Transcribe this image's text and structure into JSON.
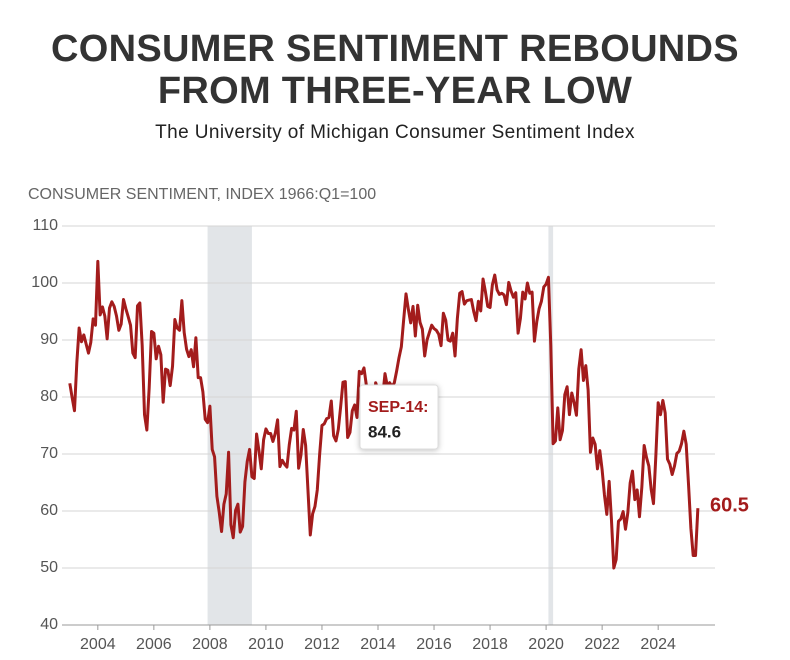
{
  "chart_data": {
    "type": "line",
    "title": "CONSUMER SENTIMENT REBOUNDS FROM THREE-YEAR LOW",
    "subtitle": "The University of Michigan Consumer Sentiment Index",
    "y_axis_label": "CONSUMER SENTIMENT, INDEX 1966:Q1=100",
    "annotation": "SEP-14:",
    "x": [
      2003,
      2003.083,
      2003.167,
      2003.25,
      2003.333,
      2003.417,
      2003.5,
      2003.583,
      2003.667,
      2003.75,
      2003.833,
      2003.917,
      2004,
      2004.083,
      2004.167,
      2004.25,
      2004.333,
      2004.417,
      2004.5,
      2004.583,
      2004.667,
      2004.75,
      2004.833,
      2004.917,
      2005,
      2005.083,
      2005.167,
      2005.25,
      2005.333,
      2005.417,
      2005.5,
      2005.583,
      2005.667,
      2005.75,
      2005.833,
      2005.917,
      2006,
      2006.083,
      2006.167,
      2006.25,
      2006.333,
      2006.417,
      2006.5,
      2006.583,
      2006.667,
      2006.75,
      2006.833,
      2006.917,
      2007,
      2007.083,
      2007.167,
      2007.25,
      2007.333,
      2007.417,
      2007.5,
      2007.583,
      2007.667,
      2007.75,
      2007.833,
      2007.917,
      2008,
      2008.083,
      2008.167,
      2008.25,
      2008.333,
      2008.417,
      2008.5,
      2008.583,
      2008.667,
      2008.75,
      2008.833,
      2008.917,
      2009,
      2009.083,
      2009.167,
      2009.25,
      2009.333,
      2009.417,
      2009.5,
      2009.583,
      2009.667,
      2009.75,
      2009.833,
      2009.917,
      2010,
      2010.083,
      2010.167,
      2010.25,
      2010.333,
      2010.417,
      2010.5,
      2010.583,
      2010.667,
      2010.75,
      2010.833,
      2010.917,
      2011,
      2011.083,
      2011.167,
      2011.25,
      2011.333,
      2011.417,
      2011.5,
      2011.583,
      2011.667,
      2011.75,
      2011.833,
      2011.917,
      2012,
      2012.083,
      2012.167,
      2012.25,
      2012.333,
      2012.417,
      2012.5,
      2012.583,
      2012.667,
      2012.75,
      2012.833,
      2012.917,
      2013,
      2013.083,
      2013.167,
      2013.25,
      2013.333,
      2013.417,
      2013.5,
      2013.583,
      2013.667,
      2013.75,
      2013.833,
      2013.917,
      2014,
      2014.083,
      2014.167,
      2014.25,
      2014.333,
      2014.417,
      2014.5,
      2014.583,
      2014.667,
      2014.75,
      2014.833,
      2014.917,
      2015,
      2015.083,
      2015.167,
      2015.25,
      2015.333,
      2015.417,
      2015.5,
      2015.583,
      2015.667,
      2015.75,
      2015.833,
      2015.917,
      2016,
      2016.083,
      2016.167,
      2016.25,
      2016.333,
      2016.417,
      2016.5,
      2016.583,
      2016.667,
      2016.75,
      2016.833,
      2016.917,
      2017,
      2017.083,
      2017.167,
      2017.25,
      2017.333,
      2017.417,
      2017.5,
      2017.583,
      2017.667,
      2017.75,
      2017.833,
      2017.917,
      2018,
      2018.083,
      2018.167,
      2018.25,
      2018.333,
      2018.417,
      2018.5,
      2018.583,
      2018.667,
      2018.75,
      2018.833,
      2018.917,
      2019,
      2019.083,
      2019.167,
      2019.25,
      2019.333,
      2019.417,
      2019.5,
      2019.583,
      2019.667,
      2019.75,
      2019.833,
      2019.917,
      2020,
      2020.083,
      2020.167,
      2020.25,
      2020.333,
      2020.417,
      2020.5,
      2020.583,
      2020.667,
      2020.75,
      2020.833,
      2020.917,
      2021,
      2021.083,
      2021.167,
      2021.25,
      2021.333,
      2021.417,
      2021.5,
      2021.583,
      2021.667,
      2021.75,
      2021.833,
      2021.917,
      2022,
      2022.083,
      2022.167,
      2022.25,
      2022.333,
      2022.417,
      2022.5,
      2022.583,
      2022.667,
      2022.75,
      2022.833,
      2022.917,
      2023,
      2023.083,
      2023.167,
      2023.25,
      2023.333,
      2023.417,
      2023.5,
      2023.583,
      2023.667,
      2023.75,
      2023.833,
      2023.917,
      2024,
      2024.083,
      2024.167,
      2024.25,
      2024.333,
      2024.417,
      2024.5,
      2024.583,
      2024.667,
      2024.75,
      2024.833,
      2024.917,
      2025,
      2025.083,
      2025.167,
      2025.25,
      2025.333,
      2025.417
    ],
    "series": [
      {
        "color": "#a31c1c",
        "values": [
          82.4,
          79.9,
          77.6,
          86.0,
          92.1,
          89.7,
          90.9,
          89.3,
          87.7,
          89.6,
          93.7,
          92.6,
          103.8,
          94.4,
          95.8,
          94.2,
          90.2,
          95.6,
          96.7,
          95.9,
          94.2,
          91.7,
          92.8,
          97.1,
          95.5,
          94.1,
          92.6,
          87.7,
          86.9,
          96.0,
          96.5,
          89.1,
          76.9,
          74.2,
          81.6,
          91.5,
          91.2,
          86.7,
          88.9,
          87.4,
          79.1,
          84.9,
          84.7,
          82.0,
          85.4,
          93.6,
          92.1,
          91.7,
          96.9,
          91.3,
          88.4,
          87.1,
          88.3,
          85.3,
          90.4,
          83.4,
          83.4,
          80.9,
          76.1,
          75.5,
          78.4,
          70.8,
          69.5,
          62.6,
          59.8,
          56.4,
          61.2,
          63.0,
          70.3,
          57.6,
          55.3,
          60.1,
          61.2,
          56.3,
          57.3,
          65.1,
          68.7,
          70.8,
          66.0,
          65.7,
          73.5,
          70.6,
          67.4,
          72.5,
          74.4,
          73.6,
          73.6,
          72.2,
          73.6,
          76.0,
          67.8,
          68.9,
          68.2,
          67.7,
          71.6,
          74.5,
          74.2,
          77.5,
          67.5,
          69.8,
          74.3,
          71.5,
          63.7,
          55.8,
          59.5,
          60.8,
          63.7,
          69.9,
          75.0,
          75.3,
          76.2,
          76.4,
          79.3,
          73.2,
          72.3,
          74.3,
          78.3,
          82.6,
          82.7,
          72.9,
          73.8,
          77.6,
          78.6,
          76.4,
          84.5,
          84.1,
          85.1,
          82.1,
          77.5,
          73.2,
          75.1,
          82.5,
          81.2,
          81.6,
          80.0,
          84.1,
          81.9,
          82.5,
          81.8,
          82.5,
          84.6,
          86.9,
          88.8,
          93.6,
          98.1,
          95.4,
          93.0,
          95.9,
          90.7,
          96.1,
          93.1,
          91.9,
          87.2,
          90.0,
          91.3,
          92.6,
          92.0,
          91.7,
          91.0,
          89.0,
          94.7,
          93.5,
          90.0,
          89.8,
          91.2,
          87.2,
          93.8,
          98.2,
          98.5,
          96.3,
          96.9,
          97.0,
          97.1,
          95.0,
          93.4,
          96.8,
          95.1,
          100.7,
          98.5,
          95.9,
          95.7,
          99.7,
          101.4,
          98.8,
          98.0,
          98.2,
          97.9,
          96.2,
          100.1,
          98.6,
          97.5,
          98.3,
          91.2,
          93.8,
          98.4,
          97.2,
          100.0,
          98.2,
          98.4,
          89.8,
          93.2,
          95.5,
          96.8,
          99.3,
          99.8,
          101.0,
          89.1,
          71.8,
          72.3,
          78.1,
          72.5,
          74.1,
          80.4,
          81.8,
          76.9,
          80.7,
          79.0,
          76.8,
          84.9,
          88.3,
          82.9,
          85.5,
          81.2,
          70.3,
          72.8,
          71.7,
          67.4,
          70.6,
          67.2,
          62.8,
          59.4,
          65.2,
          58.4,
          50.0,
          51.5,
          58.2,
          58.6,
          59.9,
          56.8,
          59.7,
          64.9,
          67.0,
          62.0,
          63.7,
          59.0,
          64.2,
          71.5,
          69.4,
          67.9,
          63.8,
          61.3,
          69.7,
          79.0,
          76.9,
          79.4,
          77.2,
          69.1,
          68.2,
          66.4,
          67.9,
          70.1,
          70.5,
          71.8,
          74.0,
          71.7,
          64.7,
          57.0,
          52.2,
          52.2,
          60.5
        ]
      }
    ],
    "recessions": [
      [
        2007.917,
        2009.5
      ],
      [
        2020.083,
        2020.25
      ]
    ],
    "xlim": [
      2002.9,
      2025.6
    ],
    "xticks": [
      2004,
      2006,
      2008,
      2010,
      2012,
      2014,
      2016,
      2018,
      2020,
      2022,
      2024
    ],
    "ylim": [
      40,
      110
    ],
    "yticks": [
      40,
      50,
      60,
      70,
      80,
      90,
      100,
      110
    ],
    "grid": true
  }
}
